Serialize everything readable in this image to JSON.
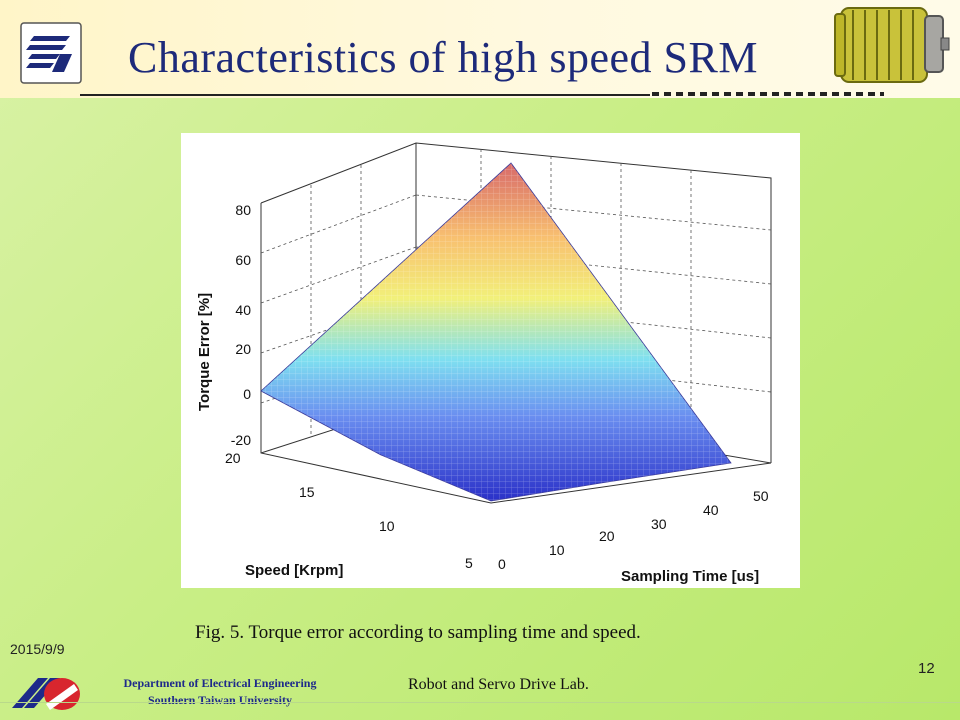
{
  "slide": {
    "title": "Characteristics of high speed SRM",
    "date": "2015/9/9",
    "page_number": "12",
    "department_line1": "Department of Electrical Engineering",
    "department_line2": "Southern Taiwan University",
    "lab_name": "Robot and Servo Drive Lab.",
    "caption": "Fig. 5. Torque error according to sampling time and speed."
  },
  "figure": {
    "z_axis_label": "Torque Error [%]",
    "z_ticks": [
      "80",
      "60",
      "40",
      "20",
      "0",
      "-20"
    ],
    "speed_axis_label": "Speed [Krpm]",
    "speed_ticks": [
      "20",
      "15",
      "10",
      "5"
    ],
    "time_axis_label": "Sampling Time [us]",
    "time_ticks": [
      "0",
      "10",
      "20",
      "30",
      "40",
      "50"
    ]
  },
  "icons": {
    "header_logo": "university-logo-icon",
    "motor": "motor-illustration-icon",
    "footer_logo": "department-logo-icon"
  },
  "colors": {
    "title": "#1d2a7a",
    "background": "#c9ee86",
    "department_text": "#1e2a8a"
  }
}
